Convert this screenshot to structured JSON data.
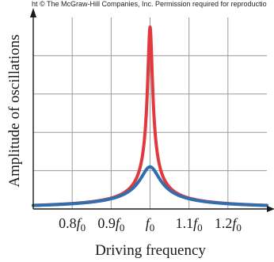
{
  "copyright": "ht © The McGraw-Hill Companies, Inc. Permission required for reproductio",
  "chart_data": {
    "type": "line",
    "xlabel": "Driving frequency",
    "ylabel": "Amplitude of oscillations",
    "xlim": [
      0.7,
      1.3
    ],
    "ylim": [
      0,
      5
    ],
    "grid": true,
    "x_ticks": [
      {
        "value": 0.8,
        "coef": "0.8",
        "sym": "f",
        "sub": "0"
      },
      {
        "value": 0.9,
        "coef": "0.9",
        "sym": "f",
        "sub": "0"
      },
      {
        "value": 1.0,
        "coef": "",
        "sym": "f",
        "sub": "0"
      },
      {
        "value": 1.1,
        "coef": "1.1",
        "sym": "f",
        "sub": "0"
      },
      {
        "value": 1.2,
        "coef": "1.2",
        "sym": "f",
        "sub": "0"
      }
    ],
    "series": [
      {
        "color": "#e03a3e",
        "width": 0.006,
        "peak": 4.75
      },
      {
        "color": "#2f6fb0",
        "width": 0.025,
        "peak": 1.1
      }
    ],
    "colors": {
      "grid": "#9a9a9a",
      "axis": "#1a1a1a"
    }
  }
}
